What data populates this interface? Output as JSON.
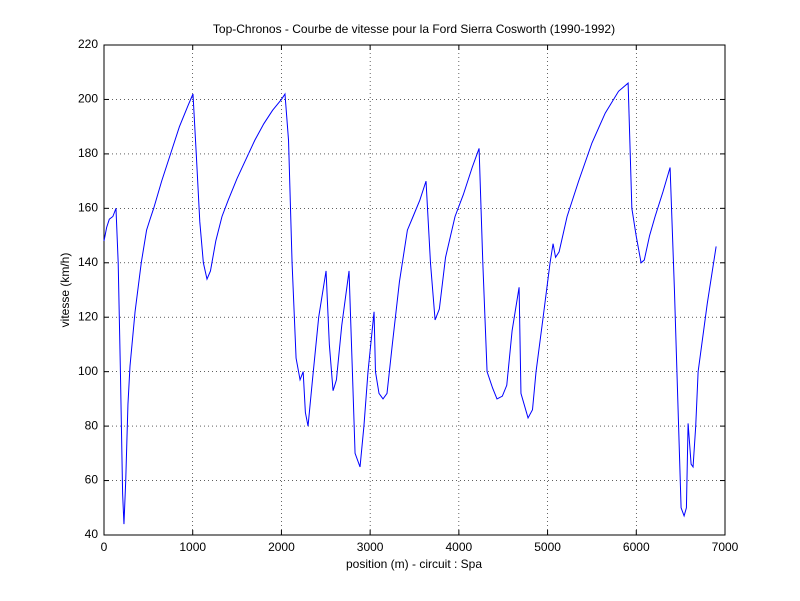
{
  "chart_data": {
    "type": "line",
    "title": "Top-Chronos - Courbe de vitesse pour la Ford Sierra Cosworth (1990-1992)",
    "xlabel": "position (m) - circuit : Spa",
    "ylabel": "vitesse (km/h)",
    "color": "#0000ff",
    "grid": true,
    "xlim": [
      0,
      7000
    ],
    "xticks": [
      0,
      1000,
      2000,
      3000,
      4000,
      5000,
      6000,
      7000
    ],
    "ylim": [
      40,
      220
    ],
    "yticks": [
      40,
      60,
      80,
      100,
      120,
      140,
      160,
      180,
      200,
      220
    ],
    "x": [
      0,
      30,
      60,
      100,
      135,
      160,
      185,
      210,
      225,
      245,
      270,
      293,
      350,
      420,
      480,
      519,
      560,
      650,
      750,
      850,
      950,
      1003,
      1040,
      1080,
      1120,
      1161,
      1200,
      1260,
      1330,
      1400,
      1500,
      1600,
      1700,
      1800,
      1900,
      2000,
      2040,
      2080,
      2120,
      2165,
      2210,
      2245,
      2270,
      2300,
      2350,
      2420,
      2503,
      2540,
      2582,
      2620,
      2680,
      2762,
      2800,
      2830,
      2886,
      2930,
      2976,
      3044,
      3060,
      3100,
      3145,
      3190,
      3250,
      3330,
      3420,
      3484,
      3560,
      3630,
      3680,
      3732,
      3780,
      3850,
      3957,
      4050,
      4150,
      4228,
      4270,
      4318,
      4380,
      4430,
      4490,
      4540,
      4600,
      4679,
      4700,
      4780,
      4830,
      4870,
      4950,
      5028,
      5062,
      5090,
      5130,
      5220,
      5350,
      5500,
      5650,
      5800,
      5908,
      5950,
      5998,
      6054,
      6090,
      6150,
      6212,
      6300,
      6381,
      6430,
      6505,
      6539,
      6565,
      6584,
      6618,
      6640,
      6670,
      6697,
      6800,
      6900
    ],
    "values": [
      148,
      153,
      156,
      157,
      160,
      140,
      100,
      55,
      44,
      60,
      88,
      102,
      122,
      140,
      152,
      156,
      160,
      170,
      180,
      190,
      198,
      202,
      180,
      155,
      140,
      134,
      137,
      148,
      157,
      163,
      171,
      178,
      185,
      191,
      196,
      200,
      202,
      185,
      140,
      105,
      97,
      100,
      85,
      80,
      97,
      120,
      137,
      110,
      93,
      97,
      117,
      137,
      100,
      70,
      65,
      80,
      100,
      122,
      100,
      92,
      90,
      92,
      110,
      133,
      152,
      157,
      163,
      170,
      140,
      119,
      123,
      142,
      157,
      165,
      175,
      182,
      140,
      100,
      94,
      90,
      91,
      95,
      115,
      131,
      92,
      83,
      86,
      100,
      120,
      140,
      147,
      142,
      144,
      157,
      170,
      184,
      195,
      203,
      206,
      160,
      150,
      140,
      141,
      150,
      157,
      166,
      175,
      130,
      50,
      47,
      50,
      81,
      66,
      65,
      80,
      100,
      125,
      146
    ]
  }
}
